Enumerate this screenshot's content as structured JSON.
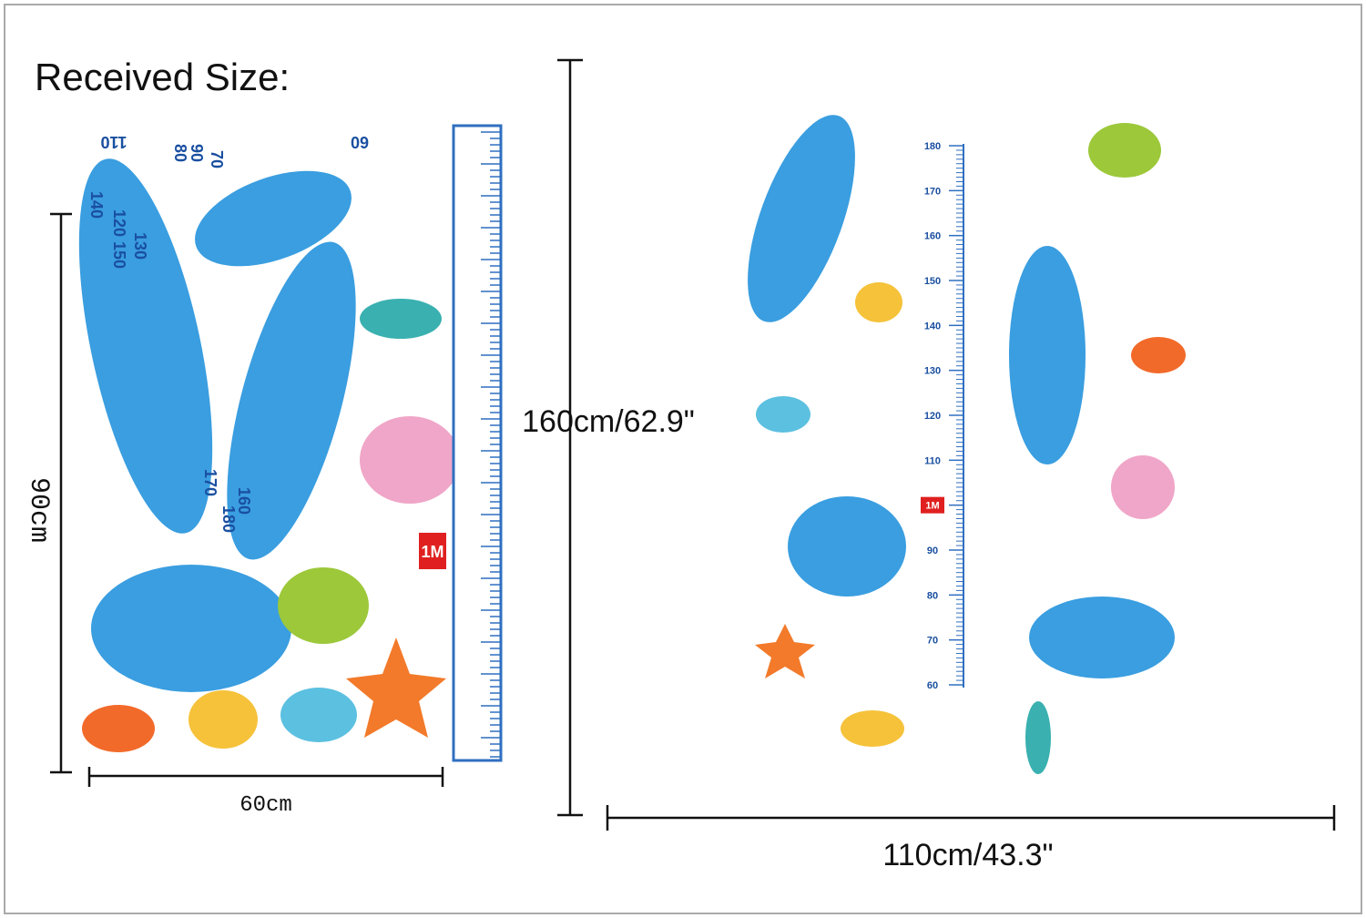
{
  "title": "Received Size:",
  "received": {
    "height": "90cm",
    "width": "60cm",
    "numbers": [
      "110",
      "120",
      "130",
      "140",
      "150",
      "60",
      "70",
      "80",
      "90",
      "160",
      "170",
      "180"
    ],
    "marker": "1M"
  },
  "installed": {
    "height": "160cm/62.9\"",
    "width": "110cm/43.3\"",
    "ruler_labels": [
      "180",
      "170",
      "160",
      "150",
      "140",
      "130",
      "120",
      "110",
      "1M",
      "90",
      "80",
      "70",
      "60"
    ]
  }
}
